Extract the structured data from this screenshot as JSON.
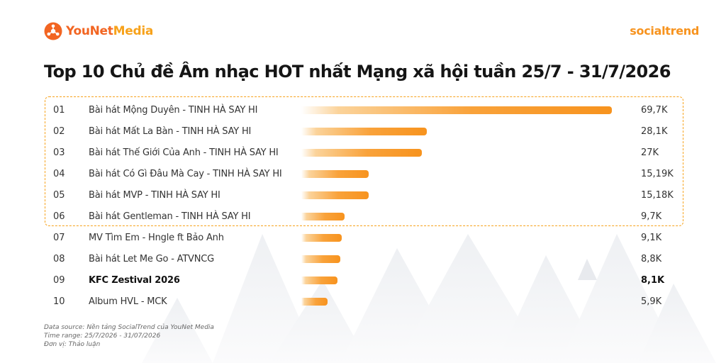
{
  "brand": {
    "left_logo_part1": "YouNet",
    "left_logo_part2": "Media",
    "right_logo": "socialtrend",
    "accent": "#f7931e",
    "accent_dark": "#f26522"
  },
  "chart_data": {
    "type": "bar",
    "orientation": "horizontal",
    "title": "Top 10 Chủ đề Âm nhạc HOT nhất Mạng xã hội tuần 25/7 - 31/7/2026",
    "categories": [
      "Bài hát Mộng Duyên - TINH HÀ SAY HI",
      "Bài hát Mất La Bàn - TINH HÀ SAY HI",
      "Bài hát Thế Giới Của Anh - TINH HÀ SAY HI",
      "Bài hát Có Gì Đâu Mà Cay - TINH HÀ SAY HI",
      "Bài hát MVP - TINH HÀ SAY HI",
      "Bài hát Gentleman - TINH HÀ SAY HI",
      "MV Tìm Em - Hngle ft Bảo Anh",
      "Bài hát Let Me Go - ATVNCG",
      "KFC Zestival 2026",
      "Album HVL - MCK"
    ],
    "ranks": [
      "01",
      "02",
      "03",
      "04",
      "05",
      "06",
      "07",
      "08",
      "09",
      "10"
    ],
    "values": [
      69700,
      28100,
      27000,
      15190,
      15180,
      9700,
      9100,
      8800,
      8100,
      5900
    ],
    "value_labels": [
      "69,7K",
      "28,1K",
      "27K",
      "15,19K",
      "15,18K",
      "9,7K",
      "9,1K",
      "8,8K",
      "8,1K",
      "5,9K"
    ],
    "highlighted_ranks": [
      "01",
      "02",
      "03",
      "04",
      "05",
      "06"
    ],
    "bold_ranks": [
      "09"
    ],
    "bar_color": "#f7931e",
    "grid": false,
    "legend": "none"
  },
  "footer": {
    "source": "Data source: Nền tảng SocialTrend của YouNet Media",
    "time_range": "Time range: 25/7/2026 - 31/07/2026",
    "unit": "Đơn vị: Thảo luận"
  }
}
